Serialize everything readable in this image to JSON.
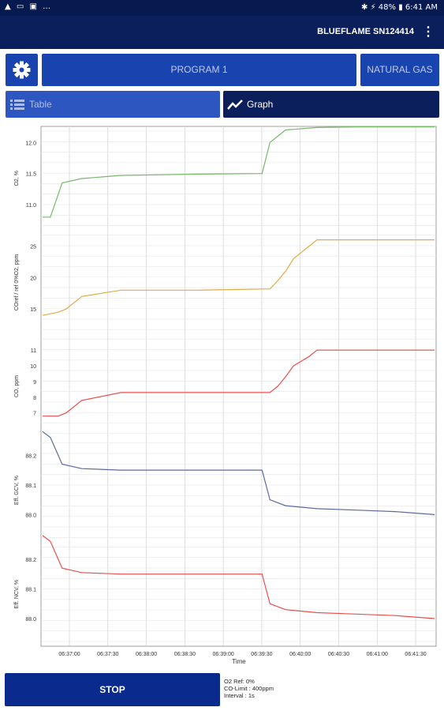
{
  "status_bar": {
    "left_icons": "▲ ▭ ▣ …",
    "right": "✱ ⚡ 48% ▮ 6:41 AM"
  },
  "app_bar": {
    "title": "BLUEFLAME SN124414",
    "menu_icon": "more-vert-icon"
  },
  "buttons": {
    "program": "PROGRAM 1",
    "fuel": "NATURAL GAS",
    "stop": "STOP",
    "settings_icon": "gear-icon"
  },
  "tabs": {
    "table": "Table",
    "graph": "Graph"
  },
  "info": {
    "line1": "O2 Ref: 0%",
    "line2": "CO-Limit : 400ppm",
    "line3": "Interval :   1s"
  },
  "chart_data": {
    "type": "line",
    "x_axis": {
      "label": "Time",
      "ticks": [
        "06:37:00",
        "06:37:30",
        "06:38:00",
        "06:38:30",
        "06:39:00",
        "06:39:30",
        "06:40:00",
        "06:40:30",
        "06:41:00",
        "06:41:30"
      ]
    },
    "panels": [
      {
        "ylabel": "O2, %",
        "color": "#78b86a",
        "yticks": [
          "12.0",
          "11.5",
          "11.0"
        ],
        "x": [
          0,
          0.02,
          0.05,
          0.1,
          0.2,
          0.4,
          0.56,
          0.58,
          0.62,
          0.7,
          0.8,
          0.9,
          1.0
        ],
        "y": [
          10.8,
          10.8,
          11.35,
          11.42,
          11.47,
          11.49,
          11.5,
          12.0,
          12.2,
          12.24,
          12.25,
          12.25,
          12.25
        ]
      },
      {
        "ylabel": "COref / ref 0%O2, ppm",
        "color": "#e0ab45",
        "yticks": [
          "25",
          "20",
          "15"
        ],
        "x": [
          0,
          0.04,
          0.06,
          0.1,
          0.2,
          0.4,
          0.58,
          0.6,
          0.62,
          0.64,
          0.68,
          0.7,
          0.8,
          0.9,
          1.0
        ],
        "y": [
          14,
          14.5,
          15,
          17,
          18,
          18,
          18.2,
          19.5,
          21,
          23,
          25,
          26,
          26,
          26,
          26
        ]
      },
      {
        "ylabel": "CO, ppm",
        "color": "#e85050",
        "yticks": [
          "11",
          "10",
          "9",
          "8",
          "7"
        ],
        "x": [
          0,
          0.04,
          0.06,
          0.1,
          0.2,
          0.4,
          0.58,
          0.6,
          0.62,
          0.64,
          0.68,
          0.7,
          0.8,
          0.9,
          1.0
        ],
        "y": [
          6.8,
          6.8,
          7.0,
          7.8,
          8.3,
          8.3,
          8.3,
          8.7,
          9.3,
          10,
          10.6,
          11,
          11,
          11,
          11
        ]
      },
      {
        "ylabel": "Eff. GCV, %",
        "color": "#5a6aa0",
        "yticks": [
          "88.2",
          "88.1",
          "88.0"
        ],
        "x": [
          0,
          0.02,
          0.05,
          0.1,
          0.2,
          0.4,
          0.56,
          0.58,
          0.62,
          0.7,
          0.8,
          0.9,
          1.0
        ],
        "y": [
          88.28,
          88.26,
          88.17,
          88.155,
          88.15,
          88.15,
          88.15,
          88.05,
          88.03,
          88.02,
          88.015,
          88.01,
          88.0
        ]
      },
      {
        "ylabel": "Eff. NCV, %",
        "color": "#e85050",
        "yticks": [
          "88.2",
          "88.1",
          "88.0"
        ],
        "x": [
          0,
          0.02,
          0.05,
          0.1,
          0.2,
          0.4,
          0.56,
          0.58,
          0.62,
          0.7,
          0.8,
          0.9,
          1.0
        ],
        "y": [
          88.28,
          88.26,
          88.17,
          88.155,
          88.15,
          88.15,
          88.15,
          88.05,
          88.03,
          88.02,
          88.015,
          88.01,
          88.0
        ]
      }
    ]
  }
}
